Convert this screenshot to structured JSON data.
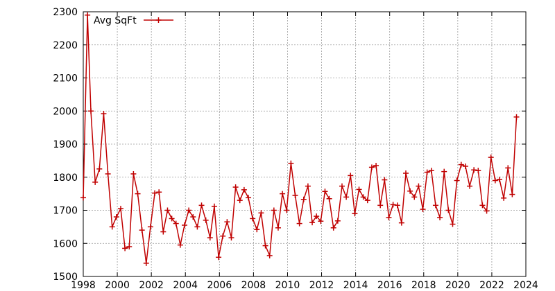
{
  "chart_data": {
    "type": "line",
    "title": "",
    "xlabel": "",
    "ylabel": "",
    "xlim": [
      1998,
      2024
    ],
    "ylim": [
      1500,
      2300
    ],
    "grid": true,
    "legend_position": "top-left",
    "x_ticks": [
      1998,
      2000,
      2002,
      2004,
      2006,
      2008,
      2010,
      2012,
      2014,
      2016,
      2018,
      2020,
      2022,
      2024
    ],
    "y_ticks": [
      1500,
      1600,
      1700,
      1800,
      1900,
      2000,
      2100,
      2200,
      2300
    ],
    "colors": {
      "series": "#c00000",
      "grid": "#999999",
      "axis": "#000000"
    },
    "series": [
      {
        "name": "Avg SqFt",
        "marker": "plus",
        "points": [
          [
            1998.0,
            1738
          ],
          [
            1998.25,
            2290
          ],
          [
            1998.45,
            2000
          ],
          [
            1998.7,
            1785
          ],
          [
            1998.95,
            1825
          ],
          [
            1999.2,
            1992
          ],
          [
            1999.45,
            1810
          ],
          [
            1999.7,
            1650
          ],
          [
            1999.95,
            1680
          ],
          [
            2000.2,
            1705
          ],
          [
            2000.45,
            1585
          ],
          [
            2000.7,
            1590
          ],
          [
            2000.95,
            1810
          ],
          [
            2001.2,
            1750
          ],
          [
            2001.45,
            1640
          ],
          [
            2001.7,
            1540
          ],
          [
            2001.95,
            1650
          ],
          [
            2002.2,
            1752
          ],
          [
            2002.45,
            1755
          ],
          [
            2002.7,
            1635
          ],
          [
            2002.95,
            1700
          ],
          [
            2003.2,
            1675
          ],
          [
            2003.45,
            1660
          ],
          [
            2003.7,
            1595
          ],
          [
            2003.95,
            1655
          ],
          [
            2004.2,
            1700
          ],
          [
            2004.45,
            1680
          ],
          [
            2004.7,
            1650
          ],
          [
            2004.95,
            1715
          ],
          [
            2005.2,
            1670
          ],
          [
            2005.45,
            1617
          ],
          [
            2005.7,
            1712
          ],
          [
            2005.95,
            1558
          ],
          [
            2006.2,
            1622
          ],
          [
            2006.45,
            1665
          ],
          [
            2006.7,
            1617
          ],
          [
            2006.95,
            1770
          ],
          [
            2007.2,
            1730
          ],
          [
            2007.45,
            1762
          ],
          [
            2007.7,
            1738
          ],
          [
            2007.95,
            1675
          ],
          [
            2008.2,
            1642
          ],
          [
            2008.45,
            1692
          ],
          [
            2008.7,
            1593
          ],
          [
            2008.95,
            1563
          ],
          [
            2009.2,
            1700
          ],
          [
            2009.45,
            1647
          ],
          [
            2009.7,
            1750
          ],
          [
            2009.95,
            1700
          ],
          [
            2010.2,
            1842
          ],
          [
            2010.45,
            1745
          ],
          [
            2010.7,
            1660
          ],
          [
            2010.95,
            1733
          ],
          [
            2011.2,
            1773
          ],
          [
            2011.45,
            1663
          ],
          [
            2011.7,
            1682
          ],
          [
            2011.95,
            1667
          ],
          [
            2012.2,
            1757
          ],
          [
            2012.45,
            1735
          ],
          [
            2012.7,
            1647
          ],
          [
            2012.95,
            1668
          ],
          [
            2013.2,
            1773
          ],
          [
            2013.45,
            1740
          ],
          [
            2013.7,
            1805
          ],
          [
            2013.95,
            1690
          ],
          [
            2014.2,
            1763
          ],
          [
            2014.45,
            1740
          ],
          [
            2014.7,
            1730
          ],
          [
            2014.95,
            1830
          ],
          [
            2015.2,
            1835
          ],
          [
            2015.45,
            1715
          ],
          [
            2015.7,
            1792
          ],
          [
            2015.95,
            1678
          ],
          [
            2016.2,
            1717
          ],
          [
            2016.45,
            1715
          ],
          [
            2016.7,
            1662
          ],
          [
            2016.95,
            1812
          ],
          [
            2017.2,
            1758
          ],
          [
            2017.45,
            1740
          ],
          [
            2017.7,
            1773
          ],
          [
            2017.95,
            1703
          ],
          [
            2018.2,
            1815
          ],
          [
            2018.45,
            1820
          ],
          [
            2018.7,
            1715
          ],
          [
            2018.95,
            1678
          ],
          [
            2019.2,
            1817
          ],
          [
            2019.45,
            1700
          ],
          [
            2019.7,
            1658
          ],
          [
            2019.95,
            1790
          ],
          [
            2020.2,
            1838
          ],
          [
            2020.45,
            1833
          ],
          [
            2020.7,
            1773
          ],
          [
            2020.95,
            1822
          ],
          [
            2021.2,
            1820
          ],
          [
            2021.45,
            1715
          ],
          [
            2021.7,
            1698
          ],
          [
            2021.95,
            1860
          ],
          [
            2022.2,
            1790
          ],
          [
            2022.45,
            1793
          ],
          [
            2022.7,
            1737
          ],
          [
            2022.95,
            1828
          ],
          [
            2023.2,
            1748
          ],
          [
            2023.45,
            1982
          ]
        ]
      }
    ]
  }
}
